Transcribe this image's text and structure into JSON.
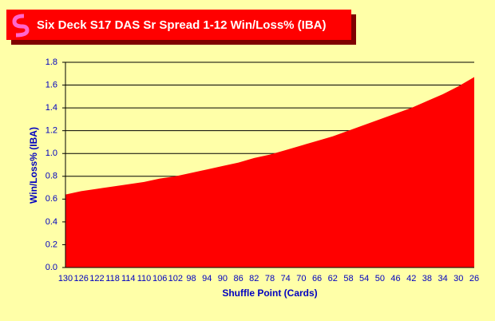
{
  "chart_data": {
    "type": "area",
    "title": "Six Deck S17 DAS Sr Spread 1-12 Win/Loss% (IBA)",
    "x_label": "Shuffle Point (Cards)",
    "y_label": "Win/Loss% (IBA)",
    "categories": [
      130,
      126,
      122,
      118,
      114,
      110,
      106,
      102,
      98,
      94,
      90,
      86,
      82,
      78,
      74,
      70,
      66,
      62,
      58,
      54,
      50,
      46,
      42,
      38,
      34,
      30,
      26
    ],
    "values": [
      0.64,
      0.67,
      0.69,
      0.71,
      0.73,
      0.75,
      0.78,
      0.8,
      0.83,
      0.86,
      0.89,
      0.92,
      0.96,
      0.99,
      1.03,
      1.07,
      1.11,
      1.15,
      1.2,
      1.25,
      1.3,
      1.35,
      1.4,
      1.46,
      1.52,
      1.59,
      1.67
    ],
    "color": "#ff0000",
    "ylim": [
      0,
      1.8
    ],
    "yticks": [
      {
        "value": 0,
        "label": "0.0"
      },
      0.2,
      0.4,
      0.6,
      0.8,
      {
        "value": 1,
        "label": "1.0"
      },
      1.2,
      1.4,
      1.6,
      1.8
    ],
    "grid": true
  }
}
